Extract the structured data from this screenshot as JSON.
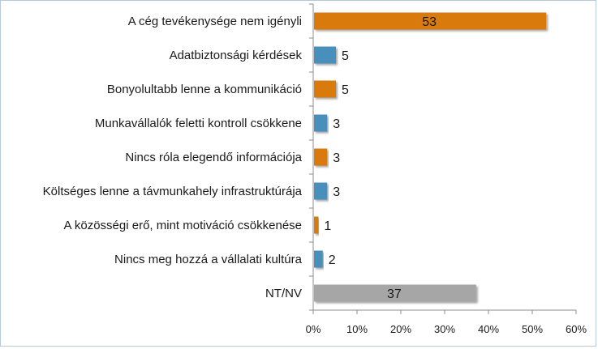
{
  "chart_data": {
    "type": "bar",
    "orientation": "horizontal",
    "categories": [
      "A cég tevékenysége nem igényli",
      "Adatbiztonsági kérdések",
      "Bonyolultabb lenne a kommunikáció",
      "Munkavállalók feletti kontroll csökkene",
      "Nincs róla elegendő információja",
      "Költséges lenne a távmunkahely infrastruktúrája",
      "A közösségi erő, mint motiváció csökkenése",
      "Nincs meg hozzá a vállalati kultúra",
      "NT/NV"
    ],
    "values": [
      53,
      5,
      5,
      3,
      3,
      3,
      1,
      2,
      37
    ],
    "data_labels": [
      "53",
      "5",
      "5",
      "3",
      "3",
      "3",
      "1",
      "2",
      "37"
    ],
    "bar_colors": [
      "#d97a0a",
      "#4a8fbc",
      "#d97a0a",
      "#4a8fbc",
      "#d97a0a",
      "#4a8fbc",
      "#d97a0a",
      "#4a8fbc",
      "#a6a6a6"
    ],
    "xlim": [
      0,
      60
    ],
    "xticks": [
      0,
      10,
      20,
      30,
      40,
      50,
      60
    ],
    "xtick_labels": [
      "0%",
      "10%",
      "20%",
      "30%",
      "40%",
      "50%",
      "60%"
    ],
    "title": "",
    "xlabel": "",
    "ylabel": "",
    "grid": false,
    "legend": "none"
  }
}
